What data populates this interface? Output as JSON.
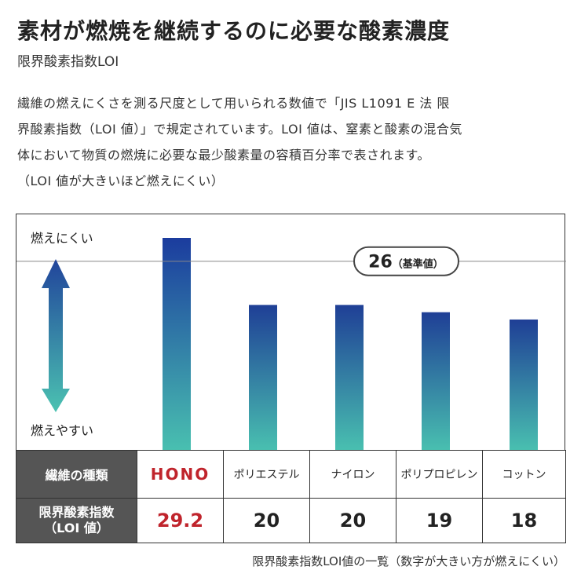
{
  "header": {
    "title": "素材が燃焼を継続するのに必要な酸素濃度",
    "subtitle": "限界酸素指数LOI"
  },
  "description": {
    "lines": [
      "繊維の燃えにくさを測る尺度として用いられる数値で「JIS L1091 E 法 限",
      "界酸素指数（LOI 値）」で規定されています。LOI 値は、窒素と酸素の混合気",
      "体において物質の燃焼に必要な最少酸素量の容積百分率で表されます。",
      "（LOI 値が大きいほど燃えにくい）"
    ]
  },
  "chart_data": {
    "type": "bar",
    "categories": [
      "HONO",
      "ポリエステル",
      "ナイロン",
      "ポリプロピレン",
      "コットン"
    ],
    "values": [
      29.2,
      20,
      20,
      19,
      18
    ],
    "reference_line": {
      "value": 26,
      "label_value": "26",
      "label_suffix": "（基準値）"
    },
    "axis_top_label": "燃えにくい",
    "axis_bottom_label": "燃えやすい",
    "ylim": [
      0,
      29.2
    ],
    "colors": {
      "top": "#1f3f96",
      "bottom": "#49c0b0",
      "hono_top": "#1b3c9e"
    }
  },
  "table": {
    "row1_header": "繊維の種類",
    "row2_header": "限界酸素指数",
    "row2_header_sub": "（LOI 値）",
    "brand_label": "HONO",
    "fibers": [
      "ポリエステル",
      "ナイロン",
      "ポリプロピレン",
      "コットン"
    ],
    "values": [
      "29.2",
      "20",
      "20",
      "19",
      "18"
    ],
    "highlight_color": "#c0242c"
  },
  "caption": "限界酸素指数LOI値の一覧（数字が大きい方が燃えにくい）"
}
